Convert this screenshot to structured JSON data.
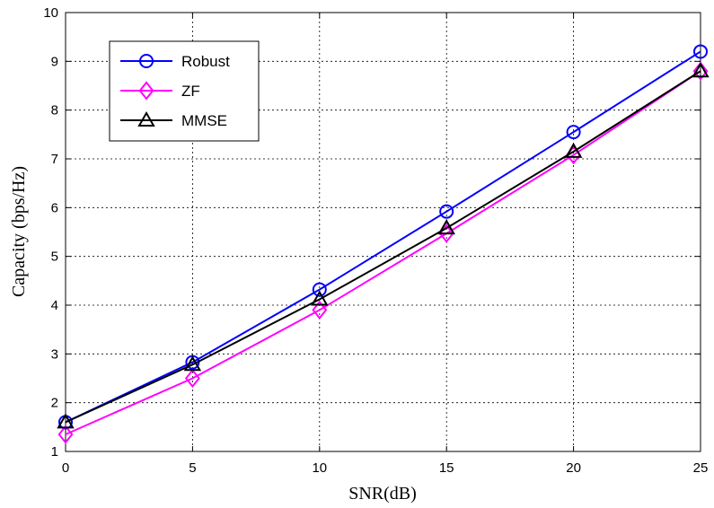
{
  "chart_data": {
    "type": "line",
    "xlabel": "SNR(dB)",
    "ylabel": "Capacity (bps/Hz)",
    "xlim": [
      0,
      25
    ],
    "ylim": [
      1,
      10
    ],
    "x": [
      0,
      5,
      10,
      15,
      20,
      25
    ],
    "xticks": [
      "0",
      "5",
      "10",
      "15",
      "20",
      "25"
    ],
    "yticks": [
      "1",
      "2",
      "3",
      "4",
      "5",
      "6",
      "7",
      "8",
      "9",
      "10"
    ],
    "grid": true,
    "legend_position": "top-left",
    "series": [
      {
        "name": "Robust",
        "color": "#0000ff",
        "marker": "circle",
        "values": [
          1.6,
          2.83,
          4.32,
          5.92,
          7.55,
          9.2
        ]
      },
      {
        "name": "ZF",
        "color": "#ff00ff",
        "marker": "diamond",
        "values": [
          1.35,
          2.5,
          3.9,
          5.47,
          7.08,
          8.8
        ]
      },
      {
        "name": "MMSE",
        "color": "#000000",
        "marker": "triangle",
        "values": [
          1.6,
          2.78,
          4.12,
          5.58,
          7.15,
          8.8
        ]
      }
    ]
  }
}
